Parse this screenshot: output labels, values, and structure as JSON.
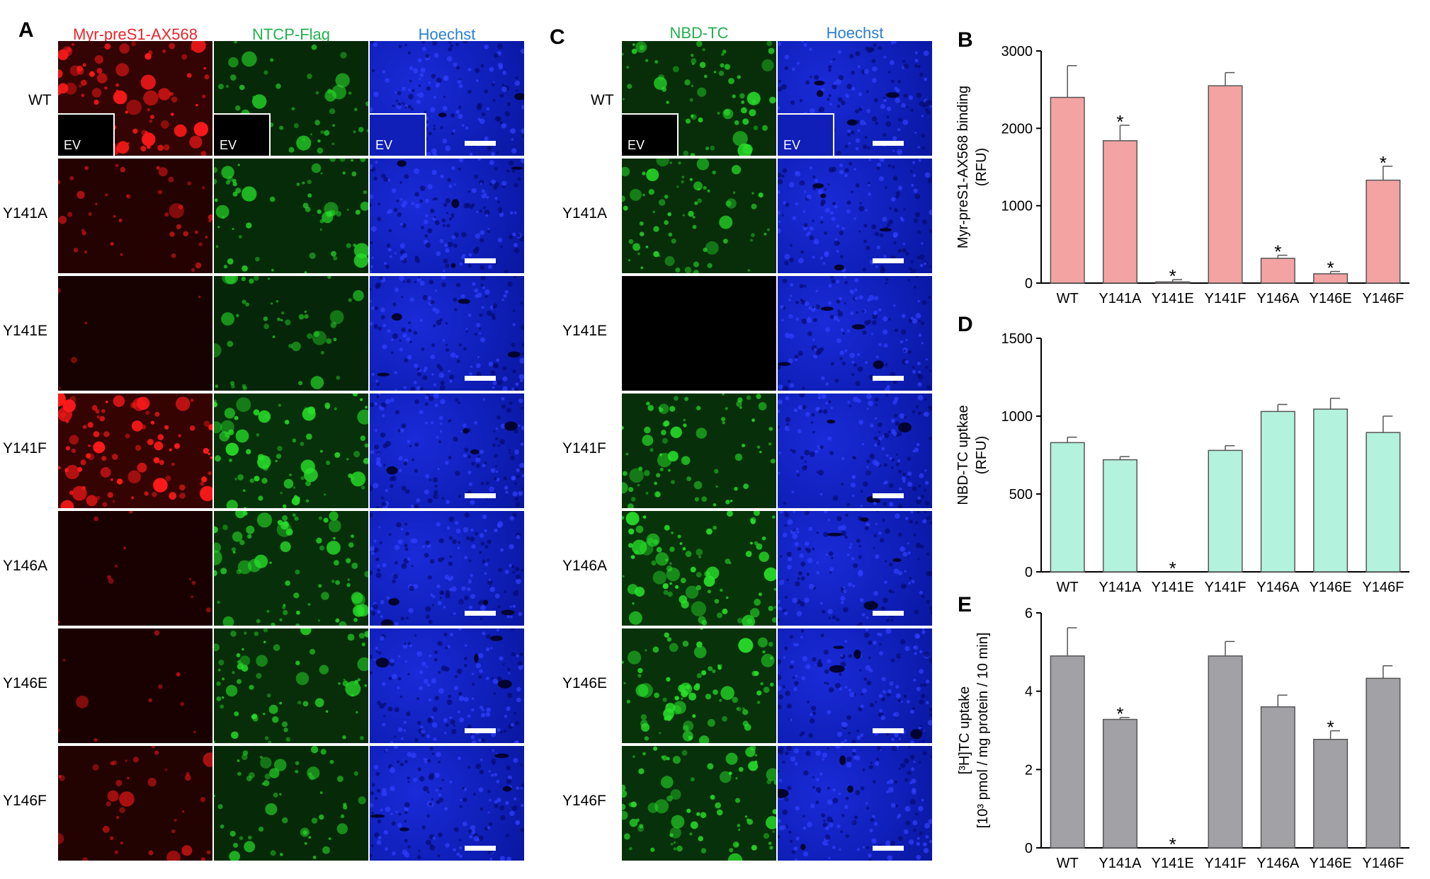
{
  "panels": {
    "A": "A",
    "B": "B",
    "C": "C",
    "D": "D",
    "E": "E"
  },
  "microscopy": {
    "row_labels": [
      "WT",
      "Y141A",
      "Y141E",
      "Y141F",
      "Y146A",
      "Y146E",
      "Y146F"
    ],
    "ev_label": "EV",
    "panel_a_headers": [
      "Myr-preS1-AX568",
      "NTCP-Flag",
      "Hoechst"
    ],
    "panel_c_headers": [
      "NBD-TC",
      "Hoechst"
    ],
    "header_colors": {
      "red": "#e8262b",
      "green": "#22b14c",
      "blue": "#2a7fd4"
    },
    "red_intensity": [
      0.95,
      0.45,
      0.05,
      1.0,
      0.12,
      0.12,
      0.4
    ],
    "green_flag_intensity": [
      0.6,
      0.65,
      0.5,
      0.85,
      0.8,
      0.75,
      0.6
    ],
    "green_nbd_intensity": [
      0.75,
      0.75,
      0.0,
      0.8,
      0.95,
      0.9,
      0.85
    ]
  },
  "chart_data": [
    {
      "id": "B",
      "type": "bar",
      "ylabel_line1": "Myr-preS1-AX568 binding",
      "ylabel_line2": "(RFU)",
      "categories": [
        "WT",
        "Y141A",
        "Y141E",
        "Y141F",
        "Y146A",
        "Y146E",
        "Y146F"
      ],
      "values": [
        2400,
        1840,
        15,
        2550,
        320,
        120,
        1330
      ],
      "errors": [
        410,
        200,
        30,
        170,
        40,
        30,
        180
      ],
      "significant": [
        false,
        true,
        true,
        false,
        true,
        true,
        true
      ],
      "ylim": [
        0,
        3000
      ],
      "yticks": [
        "0",
        "1000",
        "2000",
        "3000"
      ],
      "fill": "#f4a3a3",
      "sig_mark": "*"
    },
    {
      "id": "D",
      "type": "bar",
      "ylabel_line1": "NBD-TC uptkae",
      "ylabel_line2": "(RFU)",
      "categories": [
        "WT",
        "Y141A",
        "Y141E",
        "Y141F",
        "Y146A",
        "Y146E",
        "Y146F"
      ],
      "values": [
        830,
        720,
        0,
        780,
        1030,
        1045,
        895
      ],
      "errors": [
        35,
        20,
        0,
        30,
        45,
        70,
        105
      ],
      "significant": [
        false,
        false,
        true,
        false,
        false,
        false,
        false
      ],
      "ylim": [
        0,
        1500
      ],
      "yticks": [
        "0",
        "500",
        "1000",
        "1500"
      ],
      "fill": "#b3f2dc",
      "sig_mark": "*"
    },
    {
      "id": "E",
      "type": "bar",
      "ylabel_line1": "[³H]TC uptake",
      "ylabel_line2": "[10³ pmol / mg protein / 10 min]",
      "categories": [
        "WT",
        "Y141A",
        "Y141E",
        "Y141F",
        "Y146A",
        "Y146E",
        "Y146F"
      ],
      "values": [
        4.9,
        3.28,
        0,
        4.9,
        3.6,
        2.77,
        4.33
      ],
      "errors": [
        0.72,
        0.05,
        0,
        0.37,
        0.3,
        0.22,
        0.32
      ],
      "significant": [
        false,
        true,
        true,
        false,
        false,
        true,
        false
      ],
      "ylim": [
        0,
        6
      ],
      "yticks": [
        "0",
        "2",
        "4",
        "6"
      ],
      "fill": "#a2a2a6",
      "sig_mark": "*"
    }
  ]
}
